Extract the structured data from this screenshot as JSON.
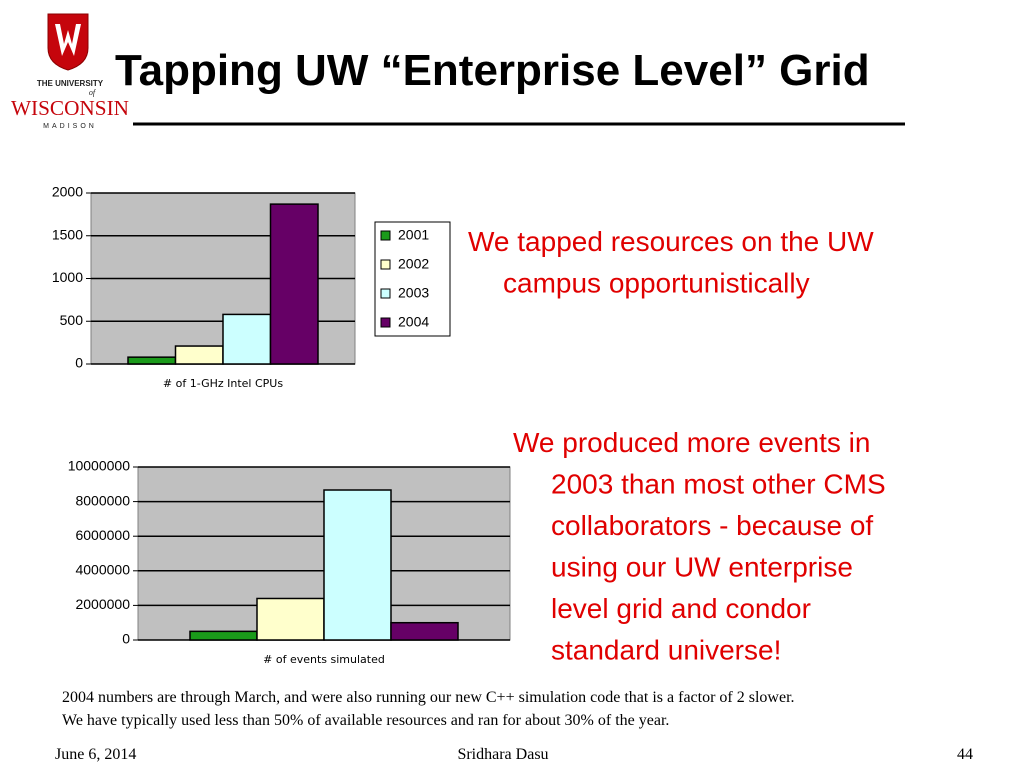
{
  "logo": {
    "line1": "THE UNIVERSITY",
    "line2": "of",
    "line3": "WISCONSIN",
    "line4": "MADISON"
  },
  "title": "Tapping UW “Enterprise Level” Grid",
  "bullets": [
    [
      "We tapped resources on the UW",
      "campus opportunistically"
    ],
    [
      "We produced more events in",
      "2003 than most other CMS",
      "collaborators - because of",
      "using our UW enterprise",
      "level grid and condor",
      "standard universe!"
    ]
  ],
  "footnote": [
    "2004 numbers are through March, and were also running our new C++ simulation code that is a factor of 2 slower.",
    "We have typically used less than 50% of available resources and ran for about 30% of the year."
  ],
  "footer": {
    "date": "June 6, 2014",
    "author": "Sridhara Dasu",
    "page": "44"
  },
  "chart_data": [
    {
      "type": "bar",
      "categories": [
        "# of 1-GHz Intel CPUs"
      ],
      "series": [
        {
          "name": "2001",
          "color": "#1a9a1a",
          "values": [
            80
          ]
        },
        {
          "name": "2002",
          "color": "#ffffcc",
          "values": [
            210
          ]
        },
        {
          "name": "2003",
          "color": "#ccffff",
          "values": [
            580
          ]
        },
        {
          "name": "2004",
          "color": "#660066",
          "values": [
            1870
          ]
        }
      ],
      "ylim": [
        0,
        2000
      ],
      "yticks": [
        0,
        500,
        1000,
        1500,
        2000
      ],
      "grid": true,
      "legend": "right"
    },
    {
      "type": "bar",
      "categories": [
        "# of events simulated"
      ],
      "series": [
        {
          "name": "2001",
          "color": "#1a9a1a",
          "values": [
            500000
          ]
        },
        {
          "name": "2002",
          "color": "#ffffcc",
          "values": [
            2400000
          ]
        },
        {
          "name": "2003",
          "color": "#ccffff",
          "values": [
            8670000
          ]
        },
        {
          "name": "2004",
          "color": "#660066",
          "values": [
            1000000
          ]
        }
      ],
      "ylim": [
        0,
        10000000
      ],
      "yticks": [
        0,
        2000000,
        4000000,
        6000000,
        8000000,
        10000000
      ],
      "grid": true
    }
  ]
}
